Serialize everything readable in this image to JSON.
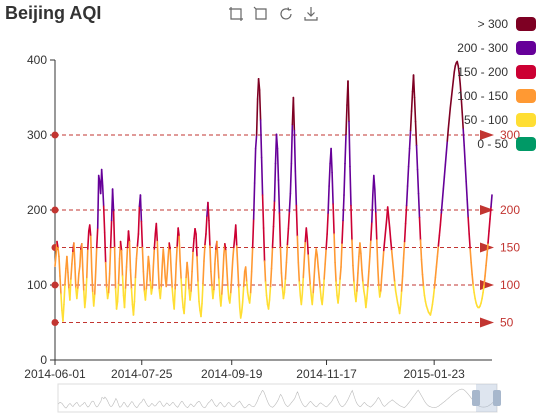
{
  "toolbox": {
    "icons": [
      "data-zoom-icon",
      "data-zoom-reset-icon",
      "restore-icon",
      "save-as-image-icon"
    ]
  },
  "chart_data": {
    "type": "line",
    "title": "Beijing AQI",
    "xlabel": "",
    "ylabel": "",
    "ylim": [
      0,
      400
    ],
    "y_ticks": [
      0,
      100,
      200,
      300,
      400
    ],
    "x_start": "2014-06-01",
    "x_end": "2015-02-28",
    "x_ticks": [
      "2014-06-01",
      "2014-07-25",
      "2014-09-19",
      "2014-11-17",
      "2015-01-23"
    ],
    "grid": false,
    "legend_position": "top-right",
    "visual_map": [
      {
        "label": "> 300",
        "min": 300,
        "max": 1000,
        "color": "#7e0023"
      },
      {
        "label": "200 - 300",
        "min": 200,
        "max": 300,
        "color": "#660099"
      },
      {
        "label": "150 - 200",
        "min": 150,
        "max": 200,
        "color": "#cc0033"
      },
      {
        "label": "100 - 150",
        "min": 100,
        "max": 150,
        "color": "#ff9933"
      },
      {
        "label": "50 - 100",
        "min": 50,
        "max": 100,
        "color": "#ffde33"
      },
      {
        "label": "0 - 50",
        "min": 0,
        "max": 50,
        "color": "#096"
      }
    ],
    "mark_lines": [
      50,
      100,
      150,
      200,
      300
    ],
    "mark_line_color": "#c23531",
    "series": [
      {
        "values": [
          125,
          140,
          158,
          150,
          138,
          112,
          88,
          66,
          52,
          74,
          101,
          122,
          138,
          117,
          95,
          80,
          108,
          128,
          145,
          156,
          128,
          96,
          82,
          96,
          115,
          125,
          148,
          155,
          120,
          92,
          70,
          84,
          110,
          148,
          172,
          180,
          165,
          120,
          90,
          72,
          88,
          118,
          150,
          176,
          246,
          238,
          222,
          254,
          232,
          205,
          170,
          130,
          96,
          82,
          90,
          115,
          150,
          186,
          228,
          198,
          150,
          95,
          68,
          78,
          102,
          135,
          158,
          146,
          112,
          86,
          70,
          96,
          124,
          150,
          172,
          158,
          120,
          95,
          74,
          60,
          78,
          110,
          135,
          152,
          168,
          205,
          220,
          185,
          150,
          118,
          92,
          80,
          95,
          115,
          138,
          126,
          104,
          88,
          96,
          124,
          148,
          168,
          182,
          158,
          122,
          94,
          82,
          98,
          126,
          148,
          132,
          110,
          98,
          116,
          138,
          156,
          147,
          119,
          96,
          80,
          68,
          95,
          128,
          152,
          176,
          165,
          132,
          108,
          85,
          70,
          62,
          82,
          110,
          130,
          116,
          94,
          80,
          92,
          118,
          145,
          162,
          175,
          168,
          138,
          104,
          78,
          66,
          58,
          75,
          102,
          132,
          154,
          168,
          192,
          210,
          186,
          152,
          118,
          98,
          82,
          94,
          128,
          148,
          158,
          132,
          108,
          86,
          72,
          88,
          112,
          140,
          155,
          146,
          122,
          98,
          82,
          76,
          90,
          112,
          134,
          150,
          164,
          180,
          152,
          125,
          96,
          70,
          56,
          64,
          78,
          98,
          118,
          124,
          104,
          90,
          82,
          76,
          90,
          118,
          150,
          188,
          236,
          282,
          300,
          348,
          375,
          360,
          320,
          270,
          220,
          176,
          132,
          104,
          86,
          74,
          68,
          80,
          98,
          122,
          150,
          178,
          212,
          262,
          301,
          282,
          240,
          196,
          150,
          116,
          96,
          82,
          90,
          108,
          130,
          154,
          175,
          198,
          222,
          262,
          314,
          350,
          306,
          252,
          206,
          165,
          130,
          104,
          86,
          74,
          88,
          110,
          134,
          158,
          176,
          162,
          140,
          118,
          100,
          86,
          74,
          90,
          112,
          134,
          148,
          140,
          124,
          110,
          96,
          82,
          74,
          88,
          108,
          128,
          148,
          168,
          196,
          232,
          262,
          282,
          250,
          208,
          168,
          130,
          104,
          86,
          76,
          88,
          108,
          124,
          156,
          186,
          220,
          262,
          301,
          340,
          372,
          318,
          258,
          206,
          160,
          126,
          104,
          88,
          78,
          92,
          116,
          138,
          156,
          142,
          120,
          104,
          92,
          84,
          70,
          82,
          98,
          118,
          138,
          160,
          184,
          220,
          246,
          228,
          196,
          160,
          124,
          98,
          84,
          92,
          112,
          128,
          146,
          160,
          174,
          188,
          204,
          190,
          176,
          160,
          146,
          132,
          118,
          104,
          92,
          84,
          76,
          70,
          62,
          74,
          92,
          112,
          136,
          158,
          182,
          206,
          232,
          258,
          282,
          306,
          332,
          358,
          380,
          350,
          318,
          286,
          254,
          222,
          190,
          160,
          134,
          114,
          98,
          86,
          78,
          72,
          68,
          64,
          62,
          60,
          66,
          74,
          84,
          96,
          110,
          124,
          138,
          152,
          166,
          180,
          196,
          212,
          228,
          244,
          260,
          276,
          292,
          308,
          322,
          336,
          348,
          360,
          372,
          384,
          392,
          396,
          398,
          392,
          382,
          368,
          350,
          330,
          308,
          286,
          262,
          238,
          214,
          190,
          168,
          148,
          130,
          114,
          100,
          90,
          82,
          76,
          72,
          70,
          70,
          72,
          76,
          82,
          90,
          100,
          112,
          126,
          140,
          156,
          172,
          188,
          204,
          220
        ]
      }
    ]
  }
}
